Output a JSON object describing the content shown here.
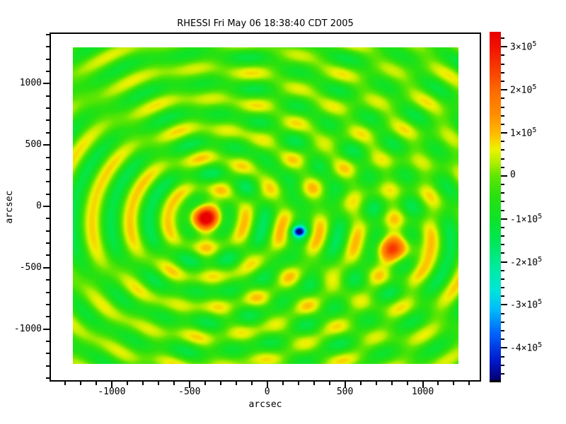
{
  "chart_data": {
    "type": "heatmap",
    "title": "RHESSI Fri May 06 18:38:40 CDT 2005",
    "xlabel": "arcsec",
    "ylabel": "arcsec",
    "x_range": [
      -1400,
      1375
    ],
    "y_range": [
      -1424,
      1424
    ],
    "x_ticks": [
      {
        "value": -1000,
        "label": "-1000"
      },
      {
        "value": -500,
        "label": "-500"
      },
      {
        "value": 0,
        "label": "0"
      },
      {
        "value": 500,
        "label": "500"
      },
      {
        "value": 1000,
        "label": "1000"
      }
    ],
    "y_ticks": [
      {
        "value": 1000,
        "label": "1000"
      },
      {
        "value": 500,
        "label": "500"
      },
      {
        "value": 0,
        "label": "0"
      },
      {
        "value": -500,
        "label": "-500"
      },
      {
        "value": -1000,
        "label": "-1000"
      }
    ],
    "minor_tick_interval": 100,
    "image_extent": {
      "x": [
        -1250,
        1230
      ],
      "y": [
        -1291,
        1302
      ]
    },
    "colorbar": {
      "range": [
        -475000,
        335000
      ],
      "minor_tick_interval": 20000,
      "ticks": [
        {
          "value": 300000,
          "label": "3×10",
          "exp": "5"
        },
        {
          "value": 200000,
          "label": "2×10",
          "exp": "5"
        },
        {
          "value": 100000,
          "label": "1×10",
          "exp": "5"
        },
        {
          "value": 0,
          "label": "0",
          "exp": ""
        },
        {
          "value": -100000,
          "label": "-1×10",
          "exp": "5"
        },
        {
          "value": -200000,
          "label": "-2×10",
          "exp": "5"
        },
        {
          "value": -300000,
          "label": "-3×10",
          "exp": "5"
        },
        {
          "value": -400000,
          "label": "-4×10",
          "exp": "5"
        }
      ]
    },
    "colormap_stops": [
      [
        -475000,
        5,
        0,
        115
      ],
      [
        -430000,
        0,
        25,
        205
      ],
      [
        -370000,
        0,
        95,
        250
      ],
      [
        -310000,
        0,
        190,
        250
      ],
      [
        -265000,
        0,
        230,
        215
      ],
      [
        -210000,
        0,
        235,
        155
      ],
      [
        -150000,
        0,
        231,
        85
      ],
      [
        -95000,
        16,
        227,
        38
      ],
      [
        -45000,
        42,
        225,
        14
      ],
      [
        0,
        95,
        230,
        3
      ],
      [
        30000,
        175,
        238,
        0
      ],
      [
        62000,
        238,
        243,
        0
      ],
      [
        100000,
        255,
        185,
        0
      ],
      [
        145000,
        255,
        140,
        0
      ],
      [
        195000,
        253,
        110,
        0
      ],
      [
        245000,
        248,
        64,
        0
      ],
      [
        295000,
        242,
        22,
        0
      ],
      [
        335000,
        232,
        0,
        0
      ]
    ],
    "field": {
      "base": -25000,
      "ring_period": 245,
      "sources": [
        {
          "name": "primary-positive-source",
          "x": -400,
          "y": -95,
          "peak": 360000,
          "sigma": 90,
          "elong": 1,
          "ring_amp": 90000,
          "ring_inner": 170,
          "ring_floor": 0.5,
          "ring_decay": 1100,
          "ring_sign": 1
        },
        {
          "name": "negative-artifact",
          "x": 206,
          "y": -207,
          "peak": -410000,
          "sigma": 40,
          "elong": 1,
          "ring_amp": 40000,
          "ring_inner": 90,
          "ring_floor": 0.3,
          "ring_decay": 550,
          "ring_sign": -1
        },
        {
          "name": "secondary-positive-source",
          "x": 829,
          "y": -351,
          "peak": 210000,
          "sigma": 95,
          "elong": 1.4,
          "ring_amp": 55000,
          "ring_inner": 160,
          "ring_floor": 0.45,
          "ring_decay": 900,
          "ring_sign": 1
        }
      ]
    }
  }
}
